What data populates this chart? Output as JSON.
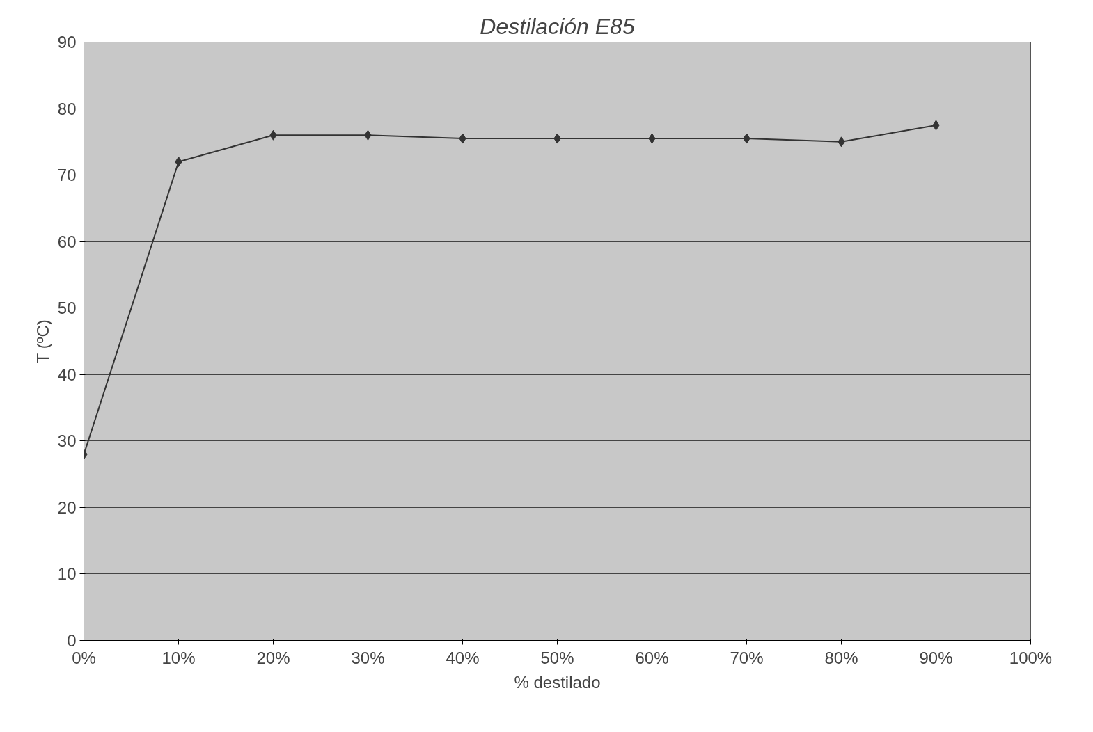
{
  "chart_data": {
    "type": "line",
    "title": "Destilación E85",
    "xlabel": "% destilado",
    "ylabel": "T (ºC)",
    "x": [
      0,
      10,
      20,
      30,
      40,
      50,
      60,
      70,
      80,
      90
    ],
    "series": [
      {
        "color": "#333333",
        "values": [
          28,
          72,
          76,
          76,
          75.5,
          75.5,
          75.5,
          75.5,
          75,
          77.5
        ]
      }
    ],
    "xlim": [
      0,
      100
    ],
    "ylim": [
      0,
      90
    ],
    "xticks": [
      {
        "value": 0,
        "label": "0%"
      },
      {
        "value": 10,
        "label": "10%"
      },
      {
        "value": 20,
        "label": "20%"
      },
      {
        "value": 30,
        "label": "30%"
      },
      {
        "value": 40,
        "label": "40%"
      },
      {
        "value": 50,
        "label": "50%"
      },
      {
        "value": 60,
        "label": "60%"
      },
      {
        "value": 70,
        "label": "70%"
      },
      {
        "value": 80,
        "label": "80%"
      },
      {
        "value": 90,
        "label": "90%"
      },
      {
        "value": 100,
        "label": "100%"
      }
    ],
    "yticks": [
      0,
      10,
      20,
      30,
      40,
      50,
      60,
      70,
      80,
      90
    ],
    "grid": "y",
    "marker": "diamond",
    "line_style": "solid"
  }
}
